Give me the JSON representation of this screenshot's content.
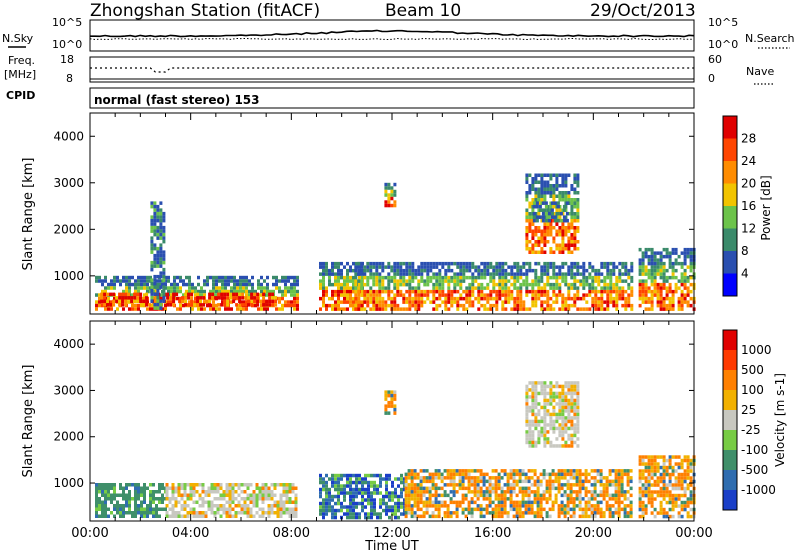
{
  "header": {
    "station": "Zhongshan Station (fitACF)",
    "beam": "Beam 10",
    "date": "29/Oct/2013"
  },
  "top_panels": {
    "nsky_label": "N.Sky",
    "nsky_ticks": [
      "10^5",
      "10^0"
    ],
    "nsearch_label": "N.Search",
    "nsearch_ticks": [
      "10^5",
      "10^0"
    ],
    "freq_label": "Freq.",
    "freq_unit": "[MHz]",
    "freq_ticks": [
      "18",
      "8"
    ],
    "nave_label": "Nave",
    "nave_ticks": [
      "60",
      "0"
    ],
    "cpid_label": "CPID",
    "cpid_text": "normal (fast stereo) 153"
  },
  "chart_data": [
    {
      "type": "heatmap",
      "name": "power",
      "xlabel": "",
      "ylabel": "Slant Range [km]",
      "xlim": [
        0,
        24
      ],
      "ylim": [
        180,
        4500
      ],
      "yticks": [
        1000,
        2000,
        3000,
        4000
      ],
      "colorbar": {
        "label": "Power [dB]",
        "ticks": [
          "4",
          "8",
          "12",
          "16",
          "20",
          "24",
          "28"
        ],
        "colors": [
          "#0000ff",
          "#2a4fb0",
          "#3a8a6a",
          "#6cc34a",
          "#f2c400",
          "#ff8c00",
          "#ff4500",
          "#e00000"
        ]
      },
      "regions": [
        {
          "t0": 0.2,
          "t1": 8.2,
          "r0": 300,
          "r1": 1000,
          "levels": "mixed"
        },
        {
          "t0": 0.4,
          "t1": 7.4,
          "r0": 350,
          "r1": 640,
          "levels": "high"
        },
        {
          "t0": 2.4,
          "t1": 2.9,
          "r0": 300,
          "r1": 2600,
          "levels": "low"
        },
        {
          "t0": 9.1,
          "t1": 10.8,
          "r0": 300,
          "r1": 1300,
          "levels": "mixed"
        },
        {
          "t0": 10.5,
          "t1": 21.5,
          "r0": 250,
          "r1": 1300,
          "levels": "mixed"
        },
        {
          "t0": 11.7,
          "t1": 12.1,
          "r0": 2500,
          "r1": 3000,
          "levels": "mixed"
        },
        {
          "t0": 17.3,
          "t1": 19.4,
          "r0": 1500,
          "r1": 3200,
          "levels": "mixed"
        },
        {
          "t0": 17.6,
          "t1": 19.0,
          "r0": 2200,
          "r1": 2600,
          "levels": "low"
        },
        {
          "t0": 21.8,
          "t1": 24.0,
          "r0": 300,
          "r1": 1600,
          "levels": "mixed"
        }
      ]
    },
    {
      "type": "heatmap",
      "name": "velocity",
      "xlabel": "Time UT",
      "ylabel": "Slant Range [km]",
      "xlim": [
        0,
        24
      ],
      "ylim": [
        180,
        4500
      ],
      "xticks": [
        "00:00",
        "04:00",
        "08:00",
        "12:00",
        "16:00",
        "20:00",
        "00:00"
      ],
      "yticks": [
        1000,
        2000,
        3000,
        4000
      ],
      "colorbar": {
        "label": "Velocity [m s-1]",
        "ticks": [
          "1000",
          "500",
          "100",
          "25",
          "-25",
          "-100",
          "-500",
          "-1000"
        ],
        "colors": [
          "#1a3fc8",
          "#2f6db0",
          "#3f8f6a",
          "#77cc44",
          "#c8c8c0",
          "#f2b100",
          "#ff8000",
          "#ff3a00",
          "#e00000"
        ]
      },
      "regions": [
        {
          "t0": 0.2,
          "t1": 3.0,
          "r0": 300,
          "r1": 1000,
          "levels": "green"
        },
        {
          "t0": 3.0,
          "t1": 8.2,
          "r0": 300,
          "r1": 1000,
          "levels": "grey-orange"
        },
        {
          "t0": 9.1,
          "t1": 12.5,
          "r0": 250,
          "r1": 1200,
          "levels": "blue-green"
        },
        {
          "t0": 12.5,
          "t1": 21.5,
          "r0": 250,
          "r1": 1300,
          "levels": "orange"
        },
        {
          "t0": 11.7,
          "t1": 12.1,
          "r0": 2500,
          "r1": 3000,
          "levels": "orange"
        },
        {
          "t0": 17.3,
          "t1": 19.4,
          "r0": 1800,
          "r1": 3200,
          "levels": "grey-orange"
        },
        {
          "t0": 21.8,
          "t1": 24.0,
          "r0": 300,
          "r1": 1600,
          "levels": "orange"
        }
      ]
    }
  ]
}
